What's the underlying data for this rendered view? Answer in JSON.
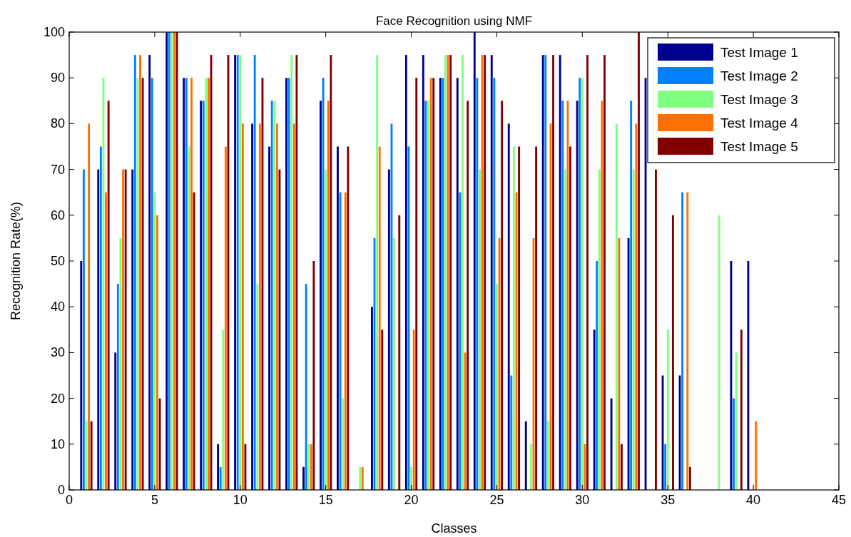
{
  "chart_data": {
    "type": "bar",
    "title": "Face Recognition using NMF",
    "xlabel": "Classes",
    "ylabel": "Recognition Rate(%)",
    "x": [
      1,
      2,
      3,
      4,
      5,
      6,
      7,
      8,
      9,
      10,
      11,
      12,
      13,
      14,
      15,
      16,
      17,
      18,
      19,
      20,
      21,
      22,
      23,
      24,
      25,
      26,
      27,
      28,
      29,
      30,
      31,
      32,
      33,
      34,
      35,
      36,
      38,
      39,
      40
    ],
    "series": [
      {
        "name": "Test Image 1",
        "color": "#00008f",
        "values": [
          50,
          70,
          30,
          70,
          95,
          100,
          90,
          85,
          10,
          95,
          80,
          75,
          90,
          5,
          85,
          75,
          0,
          40,
          70,
          95,
          95,
          90,
          90,
          100,
          95,
          80,
          15,
          95,
          95,
          85,
          35,
          20,
          55,
          90,
          25,
          25,
          null,
          50,
          50
        ]
      },
      {
        "name": "Test Image 2",
        "color": "#0080ff",
        "values": [
          70,
          75,
          45,
          95,
          90,
          100,
          90,
          85,
          5,
          95,
          95,
          85,
          90,
          45,
          90,
          65,
          0,
          55,
          80,
          75,
          85,
          90,
          65,
          90,
          90,
          25,
          0,
          95,
          85,
          90,
          50,
          0,
          85,
          null,
          10,
          65,
          null,
          20,
          null
        ]
      },
      {
        "name": "Test Image 3",
        "color": "#80ff80",
        "values": [
          15,
          90,
          55,
          90,
          65,
          100,
          75,
          90,
          35,
          95,
          45,
          85,
          95,
          10,
          70,
          20,
          5,
          95,
          55,
          5,
          85,
          95,
          95,
          70,
          45,
          75,
          10,
          15,
          70,
          90,
          70,
          80,
          70,
          null,
          35,
          null,
          60,
          30,
          0
        ]
      },
      {
        "name": "Test Image 4",
        "color": "#ff7000",
        "values": [
          80,
          65,
          70,
          95,
          60,
          100,
          90,
          90,
          75,
          80,
          80,
          80,
          80,
          10,
          85,
          65,
          5,
          75,
          0,
          35,
          90,
          95,
          30,
          95,
          55,
          65,
          55,
          80,
          85,
          10,
          85,
          55,
          80,
          null,
          null,
          65,
          null,
          null,
          15
        ]
      },
      {
        "name": "Test Image 5",
        "color": "#800000",
        "values": [
          15,
          85,
          70,
          90,
          20,
          100,
          65,
          95,
          95,
          10,
          90,
          70,
          95,
          50,
          95,
          75,
          0,
          35,
          60,
          90,
          90,
          95,
          85,
          95,
          85,
          75,
          75,
          95,
          75,
          95,
          95,
          10,
          100,
          70,
          60,
          5,
          null,
          35,
          null
        ]
      }
    ],
    "xlim": [
      0,
      45
    ],
    "xticks": [
      0,
      5,
      10,
      15,
      20,
      25,
      30,
      35,
      40,
      45
    ],
    "ylim": [
      0,
      100
    ],
    "yticks": [
      0,
      10,
      20,
      30,
      40,
      50,
      60,
      70,
      80,
      90,
      100
    ],
    "grid": false,
    "legend": "top right"
  }
}
